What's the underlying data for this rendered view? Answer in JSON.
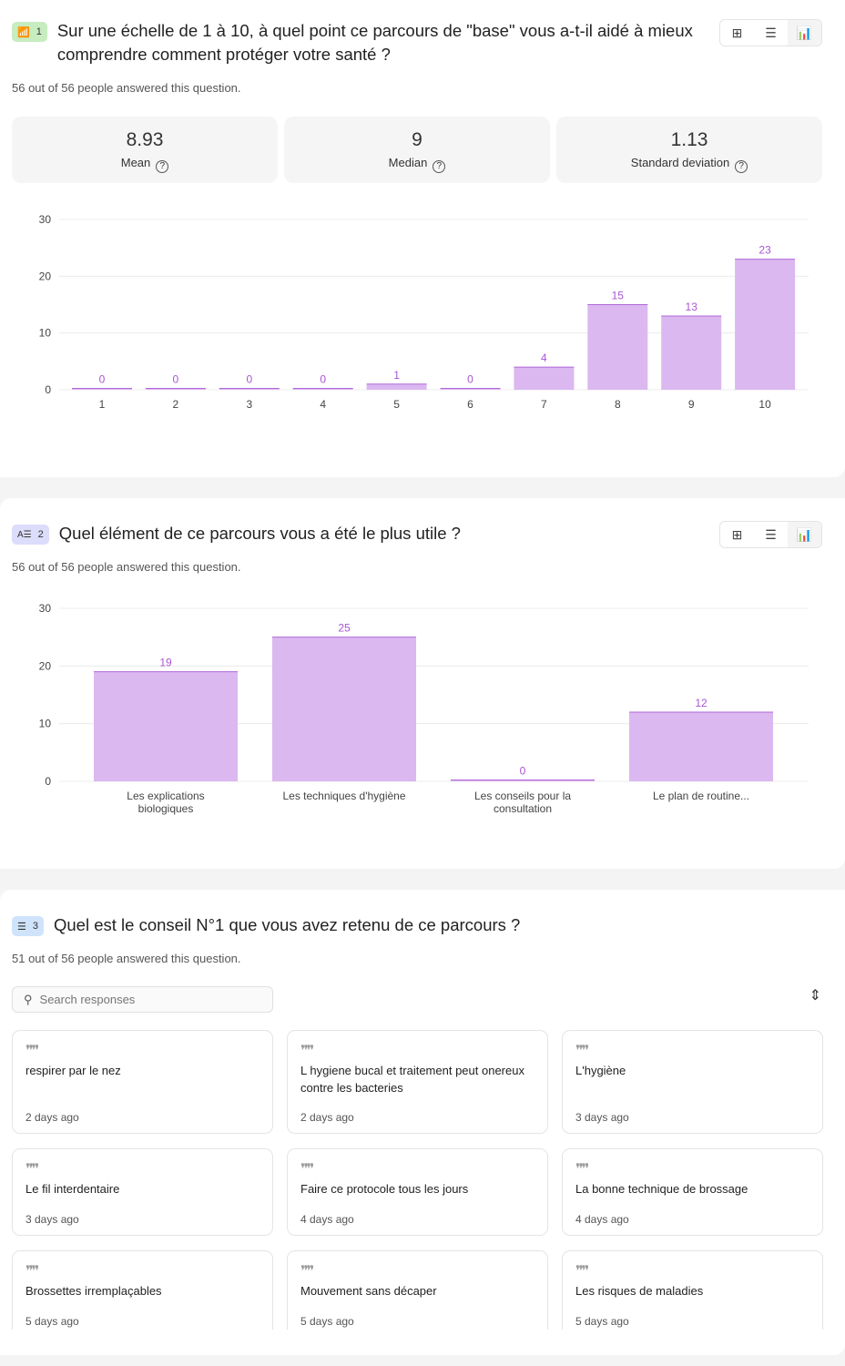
{
  "colors": {
    "bar": "#dbb8f0",
    "bar_top": "#b066d8",
    "label": "#a855d4",
    "grid": "#ececec"
  },
  "questions": [
    {
      "number": "1",
      "type_icon": "rating-icon",
      "badge_color": "#c7ecc0",
      "title": "Sur une échelle de 1 à 10, à quel point ce parcours de \"base\" vous a-t-il aidé à mieux comprendre comment protéger votre santé ?",
      "answered": "56 out of 56 people answered this question.",
      "stats": [
        {
          "value": "8.93",
          "label": "Mean"
        },
        {
          "value": "9",
          "label": "Median"
        },
        {
          "value": "1.13",
          "label": "Standard deviation"
        }
      ]
    },
    {
      "number": "2",
      "type_icon": "ranking-icon",
      "badge_color": "#dcdcfb",
      "title": "Quel élément de ce parcours vous a été le plus utile ?",
      "answered": "56 out of 56 people answered this question."
    },
    {
      "number": "3",
      "type_icon": "text-icon",
      "badge_color": "#cfe3fb",
      "title": "Quel est le conseil N°1 que vous avez retenu de ce parcours ?",
      "answered": "51 out of 56 people answered this question.",
      "search_placeholder": "Search responses",
      "responses": [
        {
          "text": "respirer par le nez",
          "time": "2 days ago"
        },
        {
          "text": "L hygiene bucal et traitement peut onereux contre les bacteries",
          "time": "2 days ago"
        },
        {
          "text": "L'hygiène",
          "time": "3 days ago"
        },
        {
          "text": "Le fil interdentaire",
          "time": "3 days ago"
        },
        {
          "text": "Faire ce protocole tous les jours",
          "time": "4 days ago"
        },
        {
          "text": "La bonne technique de brossage",
          "time": "4 days ago"
        },
        {
          "text": "Brossettes irremplaçables",
          "time": "5 days ago"
        },
        {
          "text": "Mouvement sans décaper",
          "time": "5 days ago"
        },
        {
          "text": "Les risques de maladies",
          "time": "5 days ago"
        }
      ]
    }
  ],
  "chart_data": [
    {
      "type": "bar",
      "title": "",
      "xlabel": "",
      "ylabel": "",
      "ylim": [
        0,
        30
      ],
      "yticks": [
        "0",
        "10",
        "20",
        "30"
      ],
      "grid": true,
      "categories": [
        "1",
        "2",
        "3",
        "4",
        "5",
        "6",
        "7",
        "8",
        "9",
        "10"
      ],
      "values": [
        0,
        0,
        0,
        0,
        1,
        0,
        4,
        15,
        13,
        23
      ]
    },
    {
      "type": "bar",
      "title": "",
      "xlabel": "",
      "ylabel": "",
      "ylim": [
        0,
        30
      ],
      "yticks": [
        "0",
        "10",
        "20",
        "30"
      ],
      "grid": true,
      "categories": [
        [
          "Les explications",
          "biologiques"
        ],
        [
          "Les techniques d'hygiène"
        ],
        [
          "Les conseils pour la",
          "consultation"
        ],
        [
          "Le plan de routine..."
        ]
      ],
      "values": [
        19,
        25,
        0,
        12
      ]
    }
  ]
}
